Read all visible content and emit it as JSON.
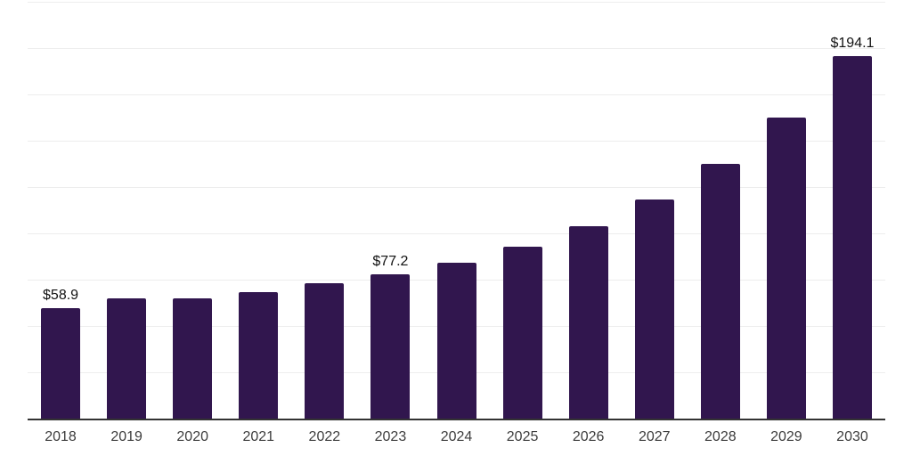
{
  "chart_data": {
    "type": "bar",
    "title": "",
    "xlabel": "",
    "ylabel": "",
    "categories": [
      "2018",
      "2019",
      "2020",
      "2021",
      "2022",
      "2023",
      "2024",
      "2025",
      "2026",
      "2027",
      "2028",
      "2029",
      "2030"
    ],
    "values": [
      58.9,
      64.5,
      64.2,
      67.8,
      72.2,
      77.2,
      83.4,
      91.8,
      103.0,
      117.1,
      136.1,
      161.2,
      194.1
    ],
    "value_labels": [
      "$58.9",
      null,
      null,
      null,
      null,
      "$77.2",
      null,
      null,
      null,
      null,
      null,
      null,
      "$194.1"
    ],
    "ylim": [
      0,
      223
    ],
    "grid": true,
    "grid_intervals": 9,
    "legend": null,
    "colors": {
      "bar": "#31164E",
      "axis_line": "#333333",
      "gridline": "#EDEDED",
      "value_label": "#111111",
      "tick_label": "#3D3D3D",
      "background": "#FFFFFF"
    }
  }
}
